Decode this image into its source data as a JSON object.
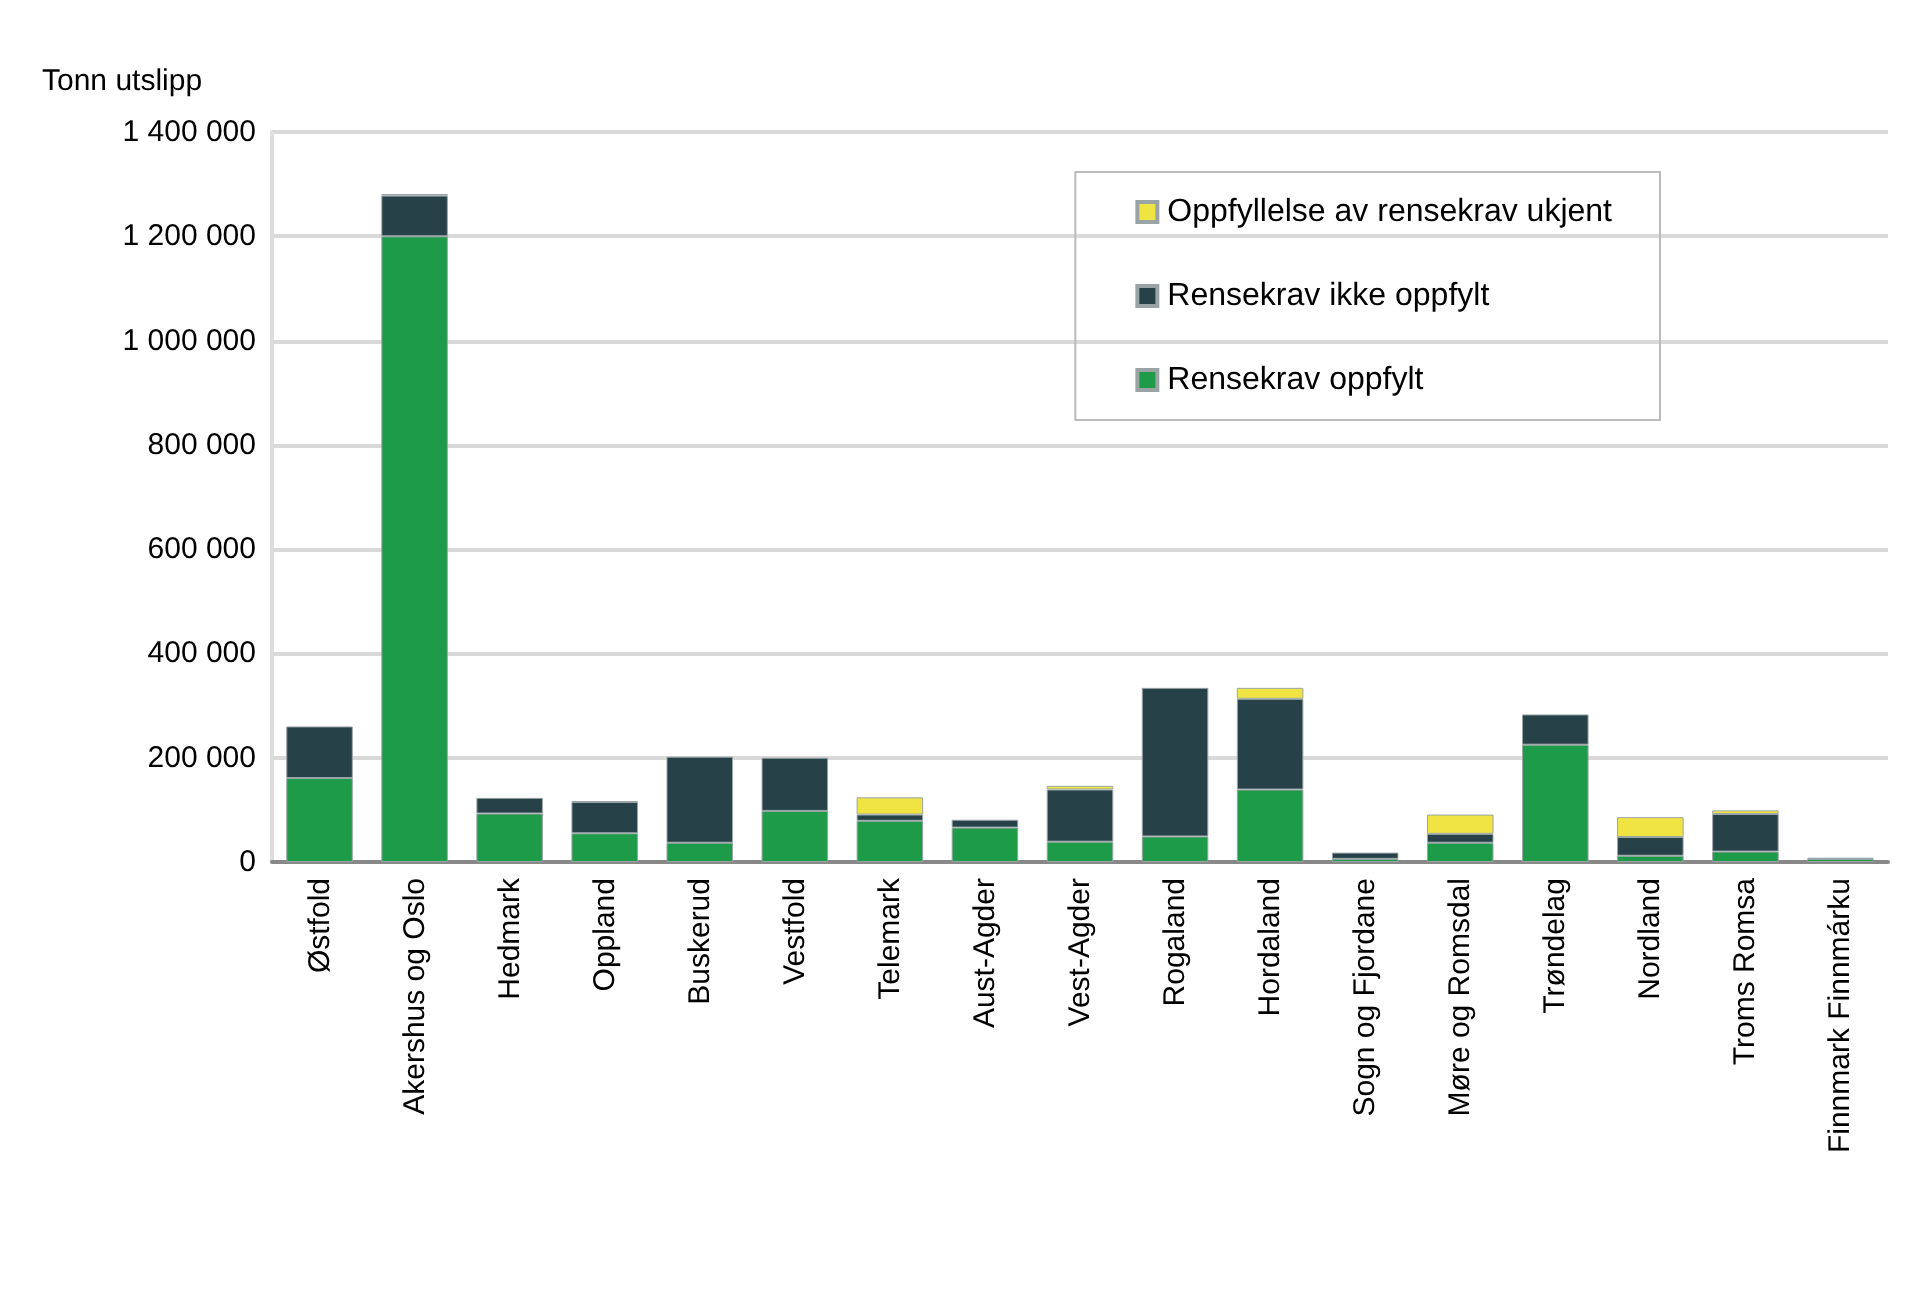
{
  "chart_data": {
    "type": "bar",
    "stacked": true,
    "ylabel": "Tonn utslipp",
    "categories": [
      "Østfold",
      "Akershus og Oslo",
      "Hedmark",
      "Oppland",
      "Buskerud",
      "Vestfold",
      "Telemark",
      "Aust-Agder",
      "Vest-Agder",
      "Rogaland",
      "Hordaland",
      "Sogn og Fjordane",
      "Møre og Romsdal",
      "Trøndelag",
      "Nordland",
      "Troms Romsa",
      "Finnmark Finnmárku"
    ],
    "series": [
      {
        "name": "Rensekrav oppfylt",
        "color": "#1e9b48",
        "values": [
          161000,
          1200000,
          93000,
          55000,
          37000,
          98000,
          79000,
          66000,
          39000,
          49000,
          139000,
          6000,
          37000,
          225000,
          12000,
          20000,
          6000
        ]
      },
      {
        "name": "Rensekrav ikke oppfylt",
        "color": "#274148",
        "values": [
          99000,
          78000,
          30000,
          60000,
          165000,
          102000,
          12000,
          15000,
          100000,
          285000,
          174000,
          12000,
          17000,
          58000,
          36000,
          72000,
          2000
        ]
      },
      {
        "name": "Oppfyllelse av rensekrav ukjent",
        "color": "#f0e442",
        "values": [
          null,
          3000,
          null,
          2000,
          null,
          null,
          33000,
          null,
          7000,
          null,
          21000,
          null,
          37000,
          null,
          38000,
          7000,
          null
        ]
      }
    ],
    "ylim": [
      0,
      1400000
    ],
    "yticks": [
      {
        "value": 0,
        "label": "0"
      },
      {
        "value": 200000,
        "label": "200 000"
      },
      {
        "value": 400000,
        "label": "400 000"
      },
      {
        "value": 600000,
        "label": "600 000"
      },
      {
        "value": 800000,
        "label": "800 000"
      },
      {
        "value": 1000000,
        "label": "1 000 000"
      },
      {
        "value": 1200000,
        "label": "1 200 000"
      },
      {
        "value": 1400000,
        "label": "1 400 000"
      }
    ],
    "grid": "y",
    "legend": "top right"
  }
}
